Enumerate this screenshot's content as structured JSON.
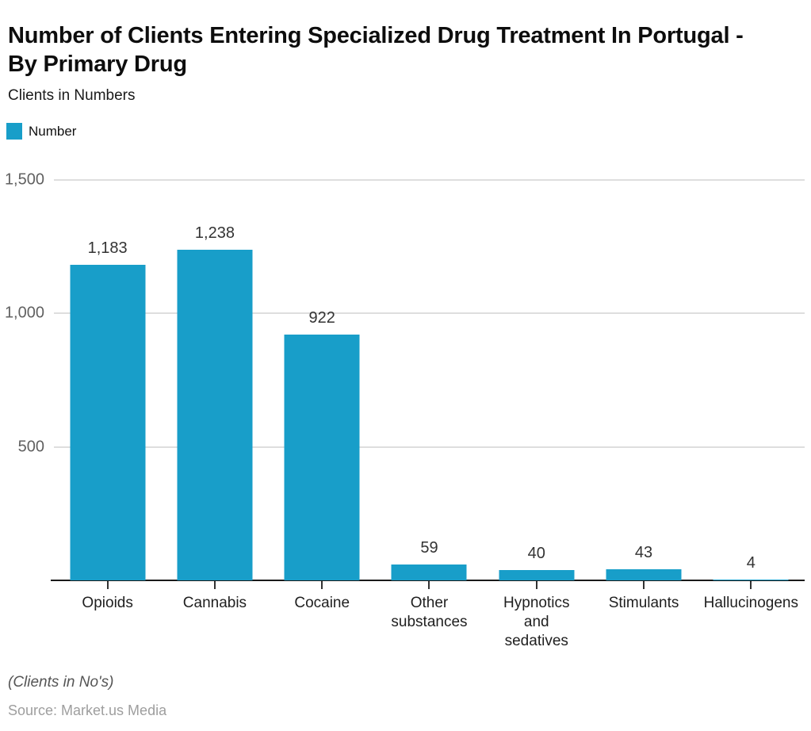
{
  "header": {
    "title": "Number of Clients Entering Specialized Drug Treatment In Portugal - By Primary Drug",
    "subtitle": "Clients in Numbers"
  },
  "legend": {
    "label": "Number"
  },
  "colors": {
    "accent": "#189EC9",
    "grid": "#dedede",
    "axis": "#1a1a1a"
  },
  "chart_data": {
    "type": "bar",
    "title": "Number of Clients Entering Specialized Drug Treatment In Portugal - By Primary Drug",
    "subtitle": "Clients in Numbers",
    "categories": [
      "Opioids",
      "Cannabis",
      "Cocaine",
      "Other substances",
      "Hypnotics and sedatives",
      "Stimulants",
      "Hallucinogens"
    ],
    "category_display_lines": [
      [
        "Opioids"
      ],
      [
        "Cannabis"
      ],
      [
        "Cocaine"
      ],
      [
        "Other",
        "substances"
      ],
      [
        "Hypnotics",
        "and",
        "sedatives"
      ],
      [
        "Stimulants"
      ],
      [
        "Hallucinogens"
      ]
    ],
    "series": [
      {
        "name": "Number",
        "values": [
          1183,
          1238,
          922,
          59,
          40,
          43,
          4
        ]
      }
    ],
    "value_labels": [
      "1,183",
      "1,238",
      "922",
      "59",
      "40",
      "43",
      "4"
    ],
    "xlabel": "",
    "ylabel": "",
    "ylim": [
      0,
      1500
    ],
    "yticks": [
      {
        "value": 1500,
        "label": "1,500"
      },
      {
        "value": 1000,
        "label": "1,000"
      },
      {
        "value": 500,
        "label": "500"
      }
    ],
    "grid": true,
    "legend_position": "top-left",
    "bar_color": "#189EC9"
  },
  "footer": {
    "note": "(Clients in No's)",
    "source": "Source: Market.us Media"
  }
}
